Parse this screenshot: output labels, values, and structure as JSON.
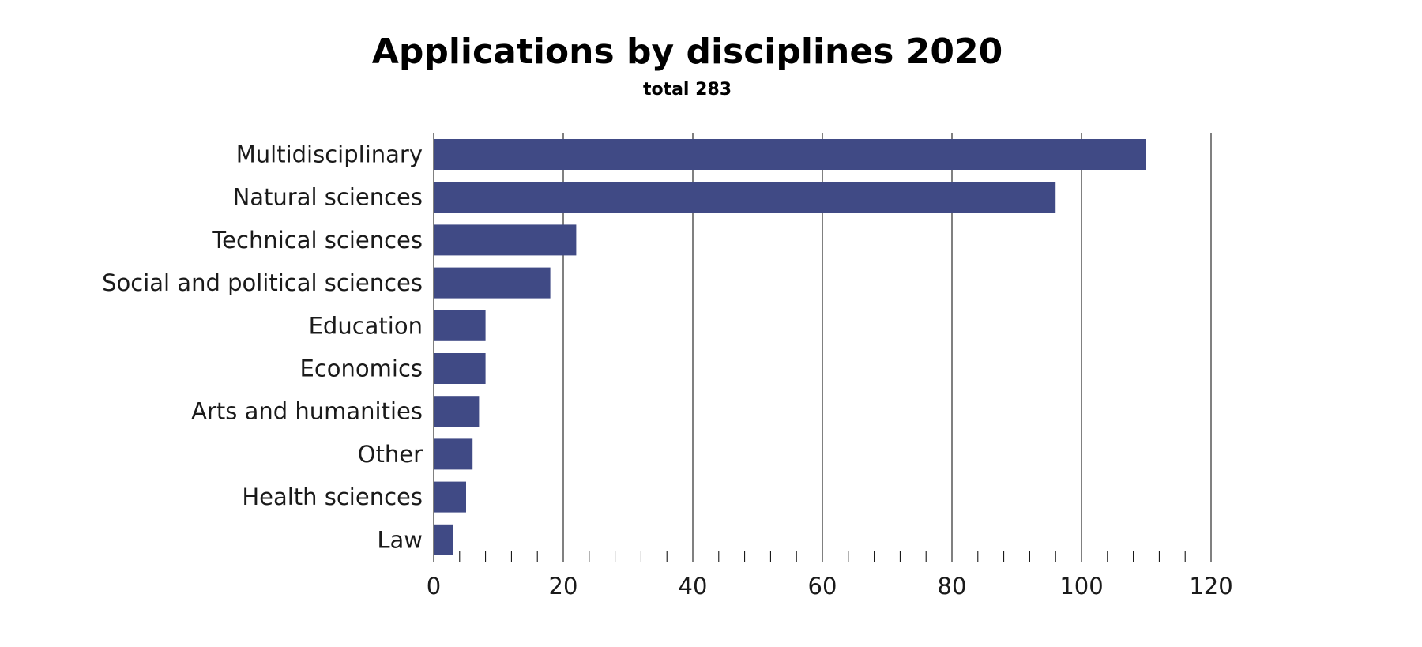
{
  "chart_data": {
    "type": "bar",
    "orientation": "horizontal",
    "title": "Applications by disciplines 2020",
    "subtitle": "total 283",
    "categories": [
      "Multidisciplinary",
      "Natural sciences",
      "Technical sciences",
      "Social and political sciences",
      "Education",
      "Economics",
      "Arts and humanities",
      "Other",
      "Health sciences",
      "Law"
    ],
    "values": [
      110,
      96,
      22,
      18,
      8,
      8,
      7,
      6,
      5,
      3
    ],
    "xlim": [
      0,
      120
    ],
    "major_ticks": [
      0,
      20,
      40,
      60,
      80,
      100,
      120
    ],
    "minor_tick_step": 4,
    "grid": "vertical major gridlines",
    "legend": "none",
    "xlabel": "",
    "ylabel": "",
    "bar_color": "#404a85",
    "grid_color": "#000000",
    "text_color": "#1a1a1a"
  }
}
